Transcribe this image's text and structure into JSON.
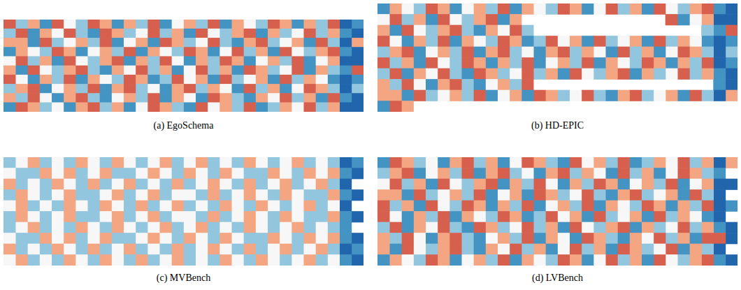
{
  "chart_data": [
    {
      "type": "heatmap",
      "title": "(a) EgoSchema",
      "tick_labels": false,
      "zlim": [
        -3,
        3
      ],
      "cells": [
        [
          2,
          -1,
          1,
          -2,
          2,
          0,
          -1,
          2,
          1,
          -2,
          1,
          -1,
          2,
          -2,
          0,
          1,
          -1,
          2,
          -2,
          1,
          0,
          -1,
          2,
          1,
          -2,
          1,
          -1,
          2,
          -3,
          -2
        ],
        [
          -1,
          2,
          -2,
          1,
          0,
          2,
          -1,
          -2,
          2,
          1,
          -1,
          0,
          2,
          -1,
          1,
          -2,
          2,
          0,
          -1,
          1,
          2,
          -2,
          1,
          -1,
          0,
          2,
          -1,
          1,
          -2,
          -3
        ],
        [
          1,
          1,
          -2,
          2,
          -1,
          0,
          1,
          -1,
          2,
          -2,
          0,
          1,
          -2,
          2,
          1,
          -1,
          0,
          2,
          -1,
          -2,
          1,
          2,
          -1,
          0,
          1,
          -2,
          2,
          -1,
          -3,
          1
        ],
        [
          -2,
          1,
          0,
          -1,
          2,
          1,
          -2,
          0,
          1,
          -1,
          2,
          -2,
          1,
          0,
          -1,
          2,
          1,
          -2,
          0,
          2,
          -1,
          1,
          -2,
          2,
          0,
          -1,
          1,
          2,
          -2,
          -3
        ],
        [
          0,
          2,
          -1,
          1,
          -2,
          2,
          0,
          -1,
          1,
          2,
          -2,
          1,
          -1,
          2,
          0,
          -2,
          1,
          -1,
          2,
          1,
          -2,
          0,
          1,
          -1,
          2,
          -2,
          0,
          1,
          -3,
          -3
        ],
        [
          1,
          -2,
          2,
          0,
          -1,
          1,
          2,
          -1,
          -2,
          1,
          0,
          2,
          -1,
          1,
          -2,
          0,
          2,
          -1,
          1,
          -2,
          2,
          1,
          -1,
          0,
          2,
          -2,
          1,
          -1,
          -2,
          2
        ],
        [
          2,
          0,
          -2,
          1,
          -1,
          2,
          -2,
          1,
          0,
          -1,
          2,
          1,
          -2,
          -1,
          2,
          0,
          1,
          -2,
          2,
          -1,
          0,
          1,
          -2,
          2,
          -1,
          1,
          0,
          -2,
          -3,
          -2
        ],
        [
          -1,
          1,
          2,
          -2,
          0,
          1,
          -1,
          2,
          -2,
          1,
          2,
          -1,
          0,
          -2,
          1,
          2,
          -1,
          1,
          0,
          -2,
          2,
          -1,
          1,
          -2,
          0,
          2,
          1,
          -1,
          -3,
          -1
        ],
        [
          1,
          -1,
          2,
          0,
          -2,
          1,
          2,
          -1,
          -2,
          0,
          1,
          -1,
          2,
          -2,
          1,
          0,
          -2,
          2,
          1,
          -1,
          -2,
          1,
          0,
          2,
          -1,
          1,
          -2,
          2,
          -2,
          -3
        ],
        [
          -2,
          2,
          1,
          -1,
          0,
          -2,
          1,
          2,
          -1,
          1,
          -2,
          0,
          2,
          1,
          -1,
          -2,
          2,
          0,
          1,
          -1,
          2,
          -2,
          -1,
          1,
          0,
          2,
          -1,
          1,
          -3,
          -3
        ]
      ]
    },
    {
      "type": "heatmap",
      "title": "(b) HD-EPIC",
      "tick_labels": false,
      "zlim": [
        -3,
        3
      ],
      "cells": [
        [
          -2,
          1,
          0,
          -1,
          2,
          1,
          -2,
          0,
          1,
          -1,
          2,
          -2,
          1,
          0,
          -1,
          2,
          1,
          -2,
          0,
          2,
          -1,
          1,
          -2,
          2,
          0,
          -1,
          1,
          2,
          -2,
          -3
        ],
        [
          0,
          2,
          -1,
          1,
          -2,
          2,
          0,
          -1,
          1,
          2,
          -2,
          1,
          null,
          null,
          null,
          null,
          null,
          null,
          null,
          null,
          null,
          null,
          null,
          null,
          2,
          -2,
          0,
          1,
          -3,
          -3
        ],
        [
          1,
          -2,
          2,
          0,
          -1,
          1,
          2,
          -1,
          -2,
          1,
          0,
          2,
          -1,
          null,
          null,
          null,
          null,
          null,
          null,
          null,
          null,
          null,
          null,
          null,
          null,
          null,
          null,
          -1,
          -2,
          2
        ],
        [
          2,
          0,
          -2,
          1,
          -1,
          2,
          -2,
          1,
          0,
          -1,
          2,
          1,
          -2,
          -1,
          2,
          0,
          1,
          -2,
          2,
          -1,
          0,
          1,
          -2,
          2,
          -1,
          1,
          0,
          -2,
          -3,
          -2
        ],
        [
          -1,
          1,
          2,
          -2,
          0,
          1,
          -1,
          2,
          -2,
          1,
          2,
          -1,
          0,
          -2,
          1,
          2,
          -1,
          1,
          0,
          -2,
          2,
          -1,
          1,
          -2,
          0,
          2,
          1,
          -1,
          -3,
          -1
        ],
        [
          2,
          -1,
          1,
          -2,
          2,
          0,
          -1,
          2,
          1,
          -2,
          1,
          -1,
          2,
          -2,
          0,
          1,
          -1,
          2,
          -2,
          1,
          0,
          -1,
          2,
          1,
          -2,
          1,
          -1,
          2,
          -3,
          -2
        ],
        [
          -1,
          2,
          -2,
          1,
          0,
          2,
          -1,
          -2,
          2,
          1,
          -1,
          0,
          2,
          -1,
          1,
          -2,
          2,
          0,
          -1,
          1,
          2,
          -2,
          1,
          -1,
          0,
          2,
          -1,
          1,
          -2,
          -3
        ],
        [
          1,
          -1,
          2,
          0,
          -2,
          1,
          2,
          -1,
          -2,
          0,
          1,
          -1,
          2,
          null,
          null,
          null,
          null,
          null,
          null,
          null,
          null,
          null,
          null,
          null,
          null,
          null,
          null,
          null,
          -2,
          -3
        ],
        [
          1,
          1,
          -2,
          2,
          -1,
          0,
          1,
          -1,
          2,
          -2,
          0,
          1,
          -2,
          2,
          1,
          -1,
          0,
          2,
          -1,
          -2,
          1,
          2,
          -1,
          0,
          1,
          -2,
          2,
          -1,
          -3,
          1
        ],
        [
          -2,
          2,
          1,
          null,
          null,
          null,
          null,
          null,
          null,
          null,
          null,
          null,
          null,
          null,
          null,
          null,
          null,
          null,
          null,
          null,
          null,
          null,
          null,
          null,
          null,
          null,
          null,
          null,
          null,
          null
        ]
      ]
    },
    {
      "type": "heatmap",
      "title": "(c) MVBench",
      "tick_labels": false,
      "zlim": [
        -3,
        3
      ],
      "cells": [
        [
          -1,
          0,
          1,
          -1,
          0,
          -1,
          1,
          0,
          -1,
          1,
          0,
          -1,
          0,
          1,
          -1,
          0,
          1,
          -1,
          0,
          -1,
          1,
          0,
          -1,
          0,
          1,
          -1,
          0,
          -1,
          -3,
          -2
        ],
        [
          0,
          -1,
          -1,
          1,
          0,
          1,
          -1,
          0,
          1,
          -1,
          -1,
          0,
          1,
          0,
          -1,
          1,
          0,
          -1,
          1,
          0,
          -1,
          -1,
          1,
          0,
          -1,
          1,
          0,
          1,
          -2,
          -3
        ],
        [
          1,
          -1,
          0,
          -1,
          1,
          0,
          -1,
          1,
          -1,
          0,
          1,
          -1,
          0,
          -1,
          1,
          -1,
          0,
          1,
          0,
          -1,
          1,
          -1,
          0,
          1,
          -1,
          0,
          1,
          -1,
          -3,
          null
        ],
        [
          -1,
          1,
          0,
          -1,
          0,
          1,
          -1,
          -1,
          0,
          1,
          -1,
          0,
          1,
          -1,
          0,
          0,
          -1,
          1,
          -1,
          0,
          1,
          0,
          -1,
          1,
          0,
          -1,
          -1,
          1,
          -2,
          -3
        ],
        [
          0,
          1,
          -1,
          0,
          -1,
          1,
          0,
          -1,
          1,
          0,
          -1,
          1,
          -1,
          0,
          1,
          -1,
          0,
          -1,
          1,
          0,
          -1,
          1,
          0,
          -1,
          0,
          1,
          -1,
          0,
          -3,
          null
        ],
        [
          -1,
          1,
          0,
          -1,
          0,
          1,
          -1,
          -1,
          0,
          1,
          -1,
          0,
          1,
          -1,
          0,
          0,
          -1,
          1,
          -1,
          0,
          1,
          0,
          -1,
          1,
          0,
          -1,
          -1,
          1,
          -2,
          -3
        ],
        [
          -1,
          0,
          1,
          -1,
          0,
          -1,
          1,
          0,
          -1,
          1,
          0,
          -1,
          0,
          1,
          -1,
          0,
          1,
          -1,
          0,
          -1,
          1,
          0,
          -1,
          0,
          1,
          -1,
          0,
          -1,
          -2,
          null
        ],
        [
          0,
          -1,
          -1,
          1,
          0,
          1,
          -1,
          0,
          1,
          -1,
          -1,
          0,
          1,
          0,
          -1,
          1,
          0,
          -1,
          1,
          0,
          -1,
          -1,
          1,
          0,
          -1,
          1,
          0,
          1,
          -2,
          -3
        ],
        [
          1,
          -1,
          0,
          -1,
          1,
          0,
          -1,
          1,
          -1,
          0,
          1,
          -1,
          0,
          -1,
          1,
          -1,
          0,
          1,
          0,
          -1,
          1,
          -1,
          0,
          1,
          -1,
          0,
          1,
          -1,
          -3,
          -2
        ],
        [
          0,
          1,
          -1,
          0,
          -1,
          1,
          0,
          -1,
          1,
          0,
          -1,
          1,
          -1,
          0,
          1,
          -1,
          0,
          -1,
          1,
          0,
          -1,
          1,
          0,
          -1,
          0,
          1,
          -1,
          0,
          -2,
          -3
        ]
      ]
    },
    {
      "type": "heatmap",
      "title": "(d) LVBench",
      "tick_labels": false,
      "zlim": [
        -3,
        3
      ],
      "cells": [
        [
          -2,
          2,
          1,
          -1,
          0,
          -2,
          1,
          2,
          -1,
          1,
          -2,
          0,
          2,
          1,
          -1,
          -2,
          2,
          0,
          1,
          -1,
          2,
          -2,
          -1,
          1,
          0,
          2,
          -1,
          1,
          -3,
          1
        ],
        [
          -1,
          1,
          2,
          -2,
          0,
          1,
          -1,
          2,
          -2,
          1,
          2,
          -1,
          0,
          -2,
          1,
          2,
          -1,
          1,
          0,
          -2,
          2,
          -1,
          1,
          -2,
          0,
          2,
          1,
          -1,
          -2,
          null
        ],
        [
          0,
          2,
          -1,
          1,
          -2,
          2,
          0,
          -1,
          1,
          2,
          -2,
          1,
          -1,
          2,
          0,
          -2,
          1,
          -1,
          2,
          1,
          -2,
          0,
          1,
          -1,
          2,
          -2,
          0,
          1,
          -3,
          -3
        ],
        [
          1,
          1,
          -2,
          2,
          -1,
          0,
          1,
          -1,
          2,
          -2,
          0,
          1,
          -2,
          2,
          1,
          -1,
          0,
          2,
          -1,
          -2,
          1,
          2,
          -1,
          0,
          1,
          -2,
          2,
          -1,
          -3,
          null
        ],
        [
          2,
          -1,
          1,
          -2,
          2,
          0,
          -1,
          2,
          1,
          -2,
          1,
          -1,
          2,
          -2,
          0,
          1,
          -1,
          2,
          -2,
          1,
          0,
          -1,
          2,
          1,
          -2,
          1,
          -1,
          2,
          -3,
          -2
        ],
        [
          2,
          0,
          -2,
          1,
          -1,
          2,
          -2,
          1,
          0,
          -1,
          2,
          1,
          -2,
          -1,
          2,
          0,
          1,
          -2,
          2,
          -1,
          0,
          1,
          -2,
          2,
          -1,
          1,
          0,
          -2,
          -3,
          null
        ],
        [
          -1,
          2,
          -2,
          1,
          0,
          2,
          -1,
          -2,
          2,
          1,
          -1,
          0,
          2,
          -1,
          1,
          -2,
          2,
          0,
          -1,
          1,
          2,
          -2,
          1,
          -1,
          0,
          2,
          -1,
          1,
          -2,
          -3
        ],
        [
          1,
          -1,
          2,
          0,
          -2,
          1,
          2,
          -1,
          -2,
          0,
          1,
          -1,
          2,
          -2,
          1,
          0,
          -2,
          2,
          1,
          -1,
          -2,
          1,
          0,
          2,
          -1,
          1,
          -2,
          2,
          2,
          -3
        ],
        [
          1,
          -2,
          2,
          0,
          -1,
          1,
          2,
          -1,
          -2,
          1,
          0,
          2,
          -1,
          1,
          -2,
          0,
          2,
          -1,
          1,
          -2,
          2,
          1,
          -1,
          0,
          2,
          -2,
          1,
          -1,
          -3,
          null
        ],
        [
          -2,
          1,
          0,
          -1,
          2,
          1,
          -2,
          0,
          1,
          -1,
          2,
          -2,
          1,
          0,
          -1,
          2,
          1,
          -2,
          0,
          2,
          -1,
          1,
          -2,
          2,
          0,
          -1,
          1,
          2,
          -2,
          -3
        ]
      ]
    }
  ]
}
